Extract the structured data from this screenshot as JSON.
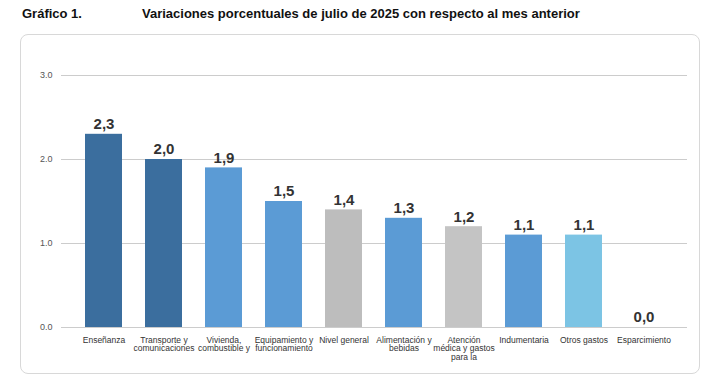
{
  "chart_data": {
    "type": "bar",
    "label": "Gráfico 1.",
    "title": "Variaciones porcentuales de julio de 2025 con respecto al mes anterior",
    "categories": [
      "Enseñanza",
      "Transporte y comunicaciones",
      "Vivienda, combustible y",
      "Equipamiento y funcionamiento",
      "Nivel general",
      "Alimentación y bebidas",
      "Atención médica y gastos para la",
      "Indumentaria",
      "Otros gastos",
      "Esparcimiento"
    ],
    "values": [
      2.3,
      2.0,
      1.9,
      1.5,
      1.4,
      1.3,
      1.2,
      1.1,
      1.1,
      0.0
    ],
    "value_labels": [
      "2,3",
      "2,0",
      "1,9",
      "1,5",
      "1,4",
      "1,3",
      "1,2",
      "1,1",
      "1,1",
      "0,0"
    ],
    "colors": [
      "#3b6e9e",
      "#3b6e9e",
      "#5b9bd5",
      "#5b9bd5",
      "#bdbdbd",
      "#5b9bd5",
      "#c4c4c4",
      "#5b9bd5",
      "#7cc4e4",
      "#7cc4e4"
    ],
    "ylim": [
      0,
      3
    ],
    "yticks": [
      0,
      1,
      2,
      3
    ],
    "grid": true,
    "data_labels": true
  }
}
